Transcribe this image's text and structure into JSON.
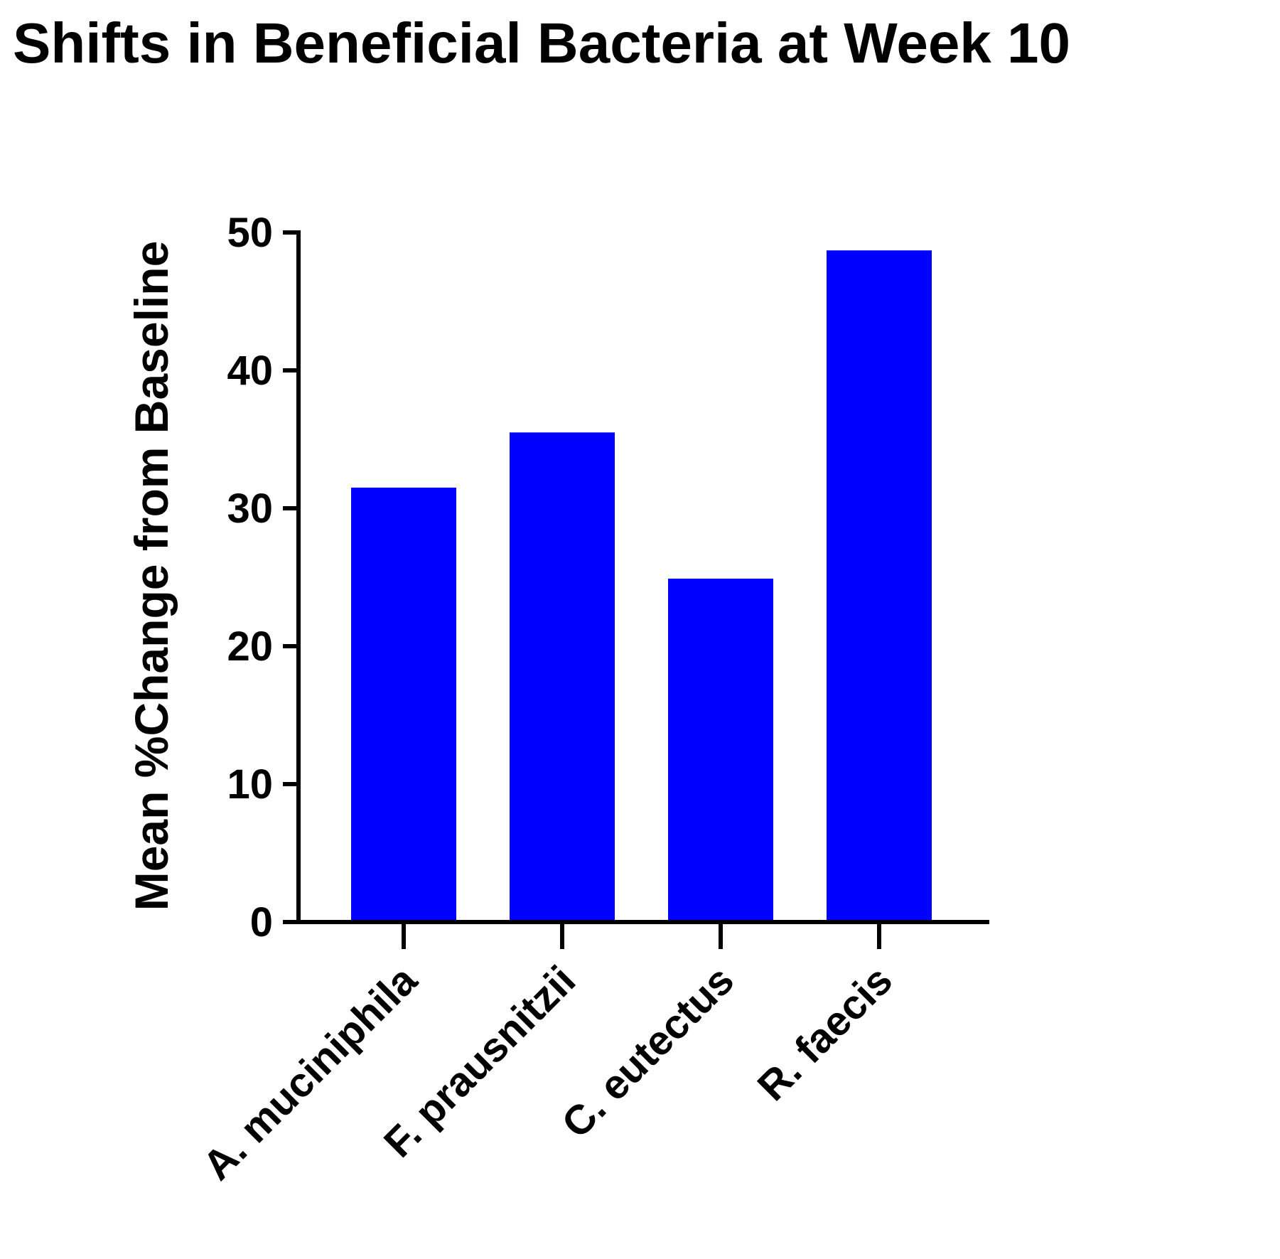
{
  "chart_data": {
    "type": "bar",
    "title": "Shifts in Beneficial Bacteria at  Week 10",
    "xlabel": "",
    "ylabel": "Mean %Change from Baseline",
    "categories": [
      "A. muciniphila",
      "F. prausnitzii",
      "C. eutectus",
      "R. faecis"
    ],
    "values": [
      31.5,
      35.5,
      24.9,
      48.7
    ],
    "ylim": [
      0,
      50
    ],
    "yticks": [
      0,
      10,
      20,
      30,
      40,
      50
    ],
    "bar_color": "#0000ff",
    "grid": false,
    "legend": "none"
  }
}
